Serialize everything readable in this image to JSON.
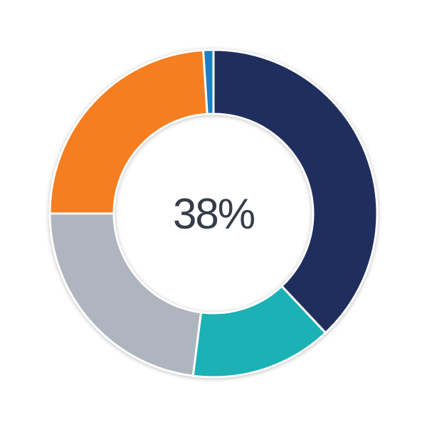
{
  "chart_data": {
    "type": "pie",
    "subtype": "donut",
    "title": "",
    "center_label": "38%",
    "center_label_color": "#363D49",
    "background_color": "#FFFFFF",
    "gap_color": "#FFFFFF",
    "gap_width": 3,
    "start_angle_deg": 0,
    "clockwise": true,
    "outer_radius": 230,
    "inner_radius": 140,
    "legend": "none",
    "segments": [
      {
        "name": "navy",
        "value": 38,
        "color": "#1F2E5C"
      },
      {
        "name": "teal",
        "value": 14,
        "color": "#1BB1B5"
      },
      {
        "name": "gray",
        "value": 23,
        "color": "#AEB5BE"
      },
      {
        "name": "orange",
        "value": 24,
        "color": "#F57E20"
      },
      {
        "name": "blue",
        "value": 1,
        "color": "#1980C2"
      }
    ]
  }
}
